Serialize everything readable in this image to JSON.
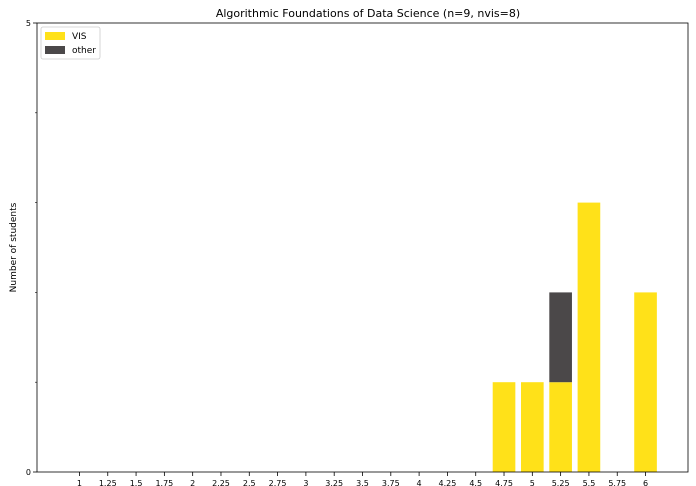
{
  "chart_data": {
    "type": "bar",
    "stacked": true,
    "title": "Algorithmic Foundations of Data Science (n=9, nvis=8)",
    "xlabel": "",
    "ylabel": "Number of students",
    "ylim": [
      0,
      5
    ],
    "ytick_labels": [
      {
        "value": 0,
        "label": "0"
      },
      {
        "value": 5,
        "label": "5"
      }
    ],
    "yminor_ticks": [
      1,
      2,
      3,
      4
    ],
    "xlim": [
      0.625,
      6.375
    ],
    "categories": [
      "1",
      "1.25",
      "1.5",
      "1.75",
      "2",
      "2.25",
      "2.5",
      "2.75",
      "3",
      "3.25",
      "3.5",
      "3.75",
      "4",
      "4.25",
      "4.5",
      "4.75",
      "5",
      "5.25",
      "5.5",
      "5.75",
      "6"
    ],
    "series": [
      {
        "name": "VIS",
        "color": "#FFE119",
        "values": [
          0,
          0,
          0,
          0,
          0,
          0,
          0,
          0,
          0,
          0,
          0,
          0,
          0,
          0,
          0,
          1,
          1,
          1,
          3,
          0,
          2
        ]
      },
      {
        "name": "other",
        "color": "#4B4849",
        "values": [
          0,
          0,
          0,
          0,
          0,
          0,
          0,
          0,
          0,
          0,
          0,
          0,
          0,
          0,
          0,
          0,
          0,
          1,
          0,
          0,
          0
        ]
      }
    ],
    "legend": {
      "position": "top-left"
    },
    "grid": false
  }
}
